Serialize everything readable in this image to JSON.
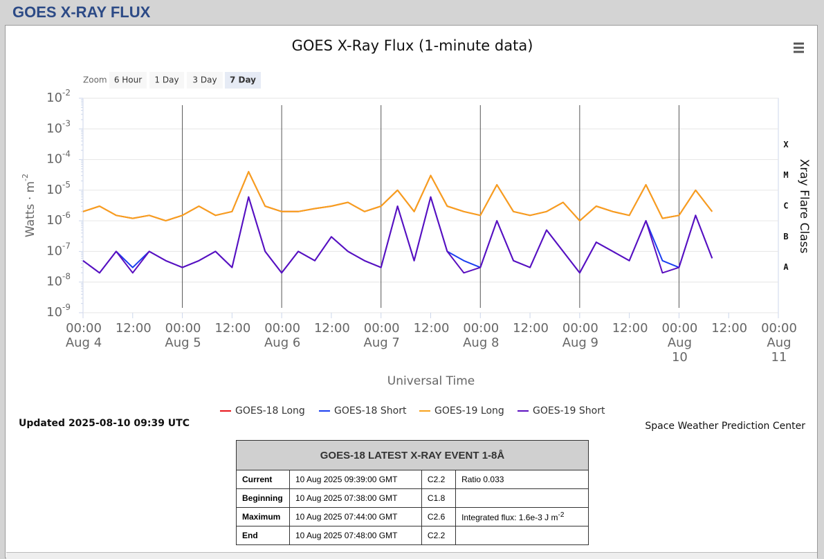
{
  "header": {
    "title": "GOES X-RAY FLUX"
  },
  "zoom": {
    "label": "Zoom",
    "buttons": [
      "6 Hour",
      "1 Day",
      "3 Day",
      "7 Day"
    ],
    "active": 3
  },
  "updated": "Updated 2025-08-10 09:39 UTC",
  "credit": "Space Weather Prediction Center",
  "table": {
    "title": "GOES-18 LATEST X-RAY EVENT 1-8Å",
    "rows": [
      [
        "Current",
        "10 Aug 2025 09:39:00 GMT",
        "C2.2",
        "Ratio 0.033"
      ],
      [
        "Beginning",
        "10 Aug 2025 07:38:00 GMT",
        "C1.8",
        ""
      ],
      [
        "Maximum",
        "10 Aug 2025 07:44:00 GMT",
        "C2.6",
        {
          "text": "Integrated flux: 1.6e-3 J m",
          "sup": "-2"
        }
      ],
      [
        "End",
        "10 Aug 2025 07:48:00 GMT",
        "C2.2",
        ""
      ]
    ]
  },
  "chart_data": {
    "type": "line",
    "title": "GOES X-Ray Flux (1-minute data)",
    "x_label": "Universal Time",
    "y_label": {
      "text": "Watts · m",
      "sup": "-2"
    },
    "y2_label": "Xray Flare Class",
    "log_y": true,
    "grid": true,
    "xlim": [
      "Aug 4 00:00",
      "Aug 11 00:00"
    ],
    "xticks": [
      {
        "value": "Aug 4 00:00",
        "label": [
          "00:00",
          "Aug 4"
        ]
      },
      {
        "value": "Aug 4 12:00",
        "label": [
          "12:00"
        ]
      },
      {
        "value": "Aug 5 00:00",
        "label": [
          "00:00",
          "Aug 5"
        ]
      },
      {
        "value": "Aug 5 12:00",
        "label": [
          "12:00"
        ]
      },
      {
        "value": "Aug 6 00:00",
        "label": [
          "00:00",
          "Aug 6"
        ]
      },
      {
        "value": "Aug 6 12:00",
        "label": [
          "12:00"
        ]
      },
      {
        "value": "Aug 7 00:00",
        "label": [
          "00:00",
          "Aug 7"
        ]
      },
      {
        "value": "Aug 7 12:00",
        "label": [
          "12:00"
        ]
      },
      {
        "value": "Aug 8 00:00",
        "label": [
          "00:00",
          "Aug 8"
        ]
      },
      {
        "value": "Aug 8 12:00",
        "label": [
          "12:00"
        ]
      },
      {
        "value": "Aug 9 00:00",
        "label": [
          "00:00",
          "Aug 9"
        ]
      },
      {
        "value": "Aug 9 12:00",
        "label": [
          "12:00"
        ]
      },
      {
        "value": "Aug 10 00:00",
        "label": [
          "00:00",
          "Aug",
          "10"
        ]
      },
      {
        "value": "Aug 10 12:00",
        "label": [
          "12:00"
        ]
      },
      {
        "value": "Aug 11 00:00",
        "label": [
          "00:00",
          "Aug",
          "11"
        ]
      }
    ],
    "ylim": [
      1e-09,
      0.01
    ],
    "yticks": [
      {
        "value": 1e-09,
        "label": "10",
        "exponent": "-9"
      },
      {
        "value": 1e-08,
        "label": "10",
        "exponent": "-8"
      },
      {
        "value": 1e-07,
        "label": "10",
        "exponent": "-7"
      },
      {
        "value": 1e-06,
        "label": "10",
        "exponent": "-6"
      },
      {
        "value": 1e-05,
        "label": "10",
        "exponent": "-5"
      },
      {
        "value": 0.0001,
        "label": "10",
        "exponent": "-4"
      },
      {
        "value": 0.001,
        "label": "10",
        "exponent": "-3"
      },
      {
        "value": 0.01,
        "label": "10",
        "exponent": "-2"
      }
    ],
    "y2lim": [
      1e-09,
      0.01
    ],
    "y2ticks": [
      {
        "value": 3e-08,
        "label": "A"
      },
      {
        "value": 3e-07,
        "label": "B"
      },
      {
        "value": 3e-06,
        "label": "C"
      },
      {
        "value": 3e-05,
        "label": "M"
      },
      {
        "value": 0.0003,
        "label": "X"
      }
    ],
    "x": [
      "Aug 4 00:00",
      "Aug 4 04:00",
      "Aug 4 08:00",
      "Aug 4 12:00",
      "Aug 4 16:00",
      "Aug 4 20:00",
      "Aug 5 00:00",
      "Aug 5 04:00",
      "Aug 5 08:00",
      "Aug 5 12:00",
      "Aug 5 16:00",
      "Aug 5 20:00",
      "Aug 6 00:00",
      "Aug 6 04:00",
      "Aug 6 08:00",
      "Aug 6 12:00",
      "Aug 6 16:00",
      "Aug 6 20:00",
      "Aug 7 00:00",
      "Aug 7 04:00",
      "Aug 7 08:00",
      "Aug 7 12:00",
      "Aug 7 16:00",
      "Aug 7 20:00",
      "Aug 8 00:00",
      "Aug 8 04:00",
      "Aug 8 08:00",
      "Aug 8 12:00",
      "Aug 8 16:00",
      "Aug 8 20:00",
      "Aug 9 00:00",
      "Aug 9 04:00",
      "Aug 9 08:00",
      "Aug 9 12:00",
      "Aug 9 16:00",
      "Aug 9 20:00",
      "Aug 10 00:00",
      "Aug 10 04:00",
      "Aug 10 08:00"
    ],
    "series": [
      {
        "name": "GOES-18 Long",
        "color": "#e8141a",
        "values": [
          2e-06,
          3e-06,
          1.5e-06,
          1.2e-06,
          1.5e-06,
          1e-06,
          1.5e-06,
          3e-06,
          1.5e-06,
          2e-06,
          4e-05,
          3e-06,
          2e-06,
          2e-06,
          2.5e-06,
          3e-06,
          4e-06,
          2e-06,
          3e-06,
          1e-05,
          2e-06,
          3e-05,
          3e-06,
          2e-06,
          1.5e-06,
          1.5e-05,
          2e-06,
          1.5e-06,
          2e-06,
          4e-06,
          1e-06,
          3e-06,
          2e-06,
          1.5e-06,
          1.5e-05,
          1.2e-06,
          1.5e-06,
          1e-05,
          2e-06
        ]
      },
      {
        "name": "GOES-18 Short",
        "color": "#1a3ef0",
        "values": [
          5e-08,
          2e-08,
          1e-07,
          3e-08,
          1e-07,
          5e-08,
          3e-08,
          5e-08,
          1e-07,
          3e-08,
          6e-06,
          1e-07,
          2e-08,
          1e-07,
          5e-08,
          3e-07,
          1e-07,
          5e-08,
          3e-08,
          3e-06,
          5e-08,
          6e-06,
          1e-07,
          5e-08,
          3e-08,
          1e-06,
          5e-08,
          3e-08,
          5e-07,
          1e-07,
          2e-08,
          2e-07,
          1e-07,
          5e-08,
          1e-06,
          5e-08,
          3e-08,
          1.5e-06,
          6e-08
        ]
      },
      {
        "name": "GOES-19 Long",
        "color": "#f7a21c",
        "values": [
          2e-06,
          3e-06,
          1.5e-06,
          1.2e-06,
          1.5e-06,
          1e-06,
          1.5e-06,
          3e-06,
          1.5e-06,
          2e-06,
          4e-05,
          3e-06,
          2e-06,
          2e-06,
          2.5e-06,
          3e-06,
          4e-06,
          2e-06,
          3e-06,
          1e-05,
          2e-06,
          3e-05,
          3e-06,
          2e-06,
          1.5e-06,
          1.5e-05,
          2e-06,
          1.5e-06,
          2e-06,
          4e-06,
          1e-06,
          3e-06,
          2e-06,
          1.5e-06,
          1.5e-05,
          1.2e-06,
          1.5e-06,
          1e-05,
          2e-06
        ]
      },
      {
        "name": "GOES-19 Short",
        "color": "#5b0fbf",
        "values": [
          5e-08,
          2e-08,
          1e-07,
          2e-08,
          1e-07,
          5e-08,
          3e-08,
          5e-08,
          1e-07,
          3e-08,
          6e-06,
          1e-07,
          2e-08,
          1e-07,
          5e-08,
          3e-07,
          1e-07,
          5e-08,
          3e-08,
          3e-06,
          5e-08,
          6e-06,
          1e-07,
          2e-08,
          3e-08,
          1e-06,
          5e-08,
          3e-08,
          5e-07,
          1e-07,
          2e-08,
          2e-07,
          1e-07,
          5e-08,
          1e-06,
          2e-08,
          3e-08,
          1.5e-06,
          6e-08
        ]
      }
    ]
  }
}
